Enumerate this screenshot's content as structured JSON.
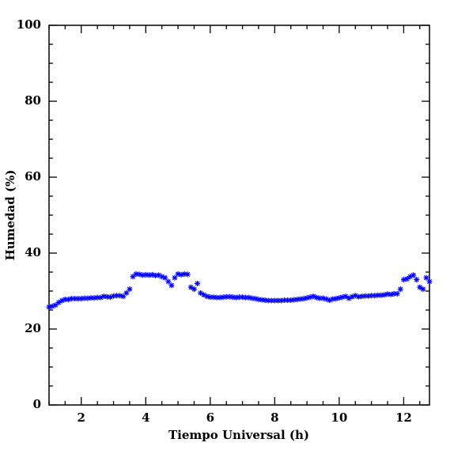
{
  "chart_data": {
    "type": "scatter",
    "xlabel": "Tiempo Universal (h)",
    "ylabel": "Humedad (%)",
    "xlim": [
      1,
      12.8
    ],
    "ylim": [
      0,
      100
    ],
    "xticks": [
      2,
      4,
      6,
      8,
      10,
      12
    ],
    "yticks": [
      0,
      20,
      40,
      60,
      80,
      100
    ],
    "xminorticks": [
      1,
      1.5,
      2.5,
      3,
      3.5,
      4.5,
      5,
      5.5,
      6.5,
      7,
      7.5,
      8.5,
      9,
      9.5,
      10.5,
      11,
      11.5,
      12.5
    ],
    "yminorticks": [
      5,
      10,
      15,
      25,
      30,
      35,
      45,
      50,
      55,
      65,
      70,
      75,
      85,
      90,
      95
    ],
    "color": "#0000ff",
    "x": [
      1.0,
      1.1,
      1.2,
      1.3,
      1.4,
      1.5,
      1.6,
      1.7,
      1.8,
      1.9,
      2.0,
      2.1,
      2.2,
      2.3,
      2.4,
      2.5,
      2.6,
      2.7,
      2.8,
      2.9,
      3.0,
      3.1,
      3.2,
      3.3,
      3.4,
      3.5,
      3.6,
      3.7,
      3.8,
      3.9,
      4.0,
      4.1,
      4.2,
      4.3,
      4.4,
      4.5,
      4.6,
      4.7,
      4.8,
      4.9,
      5.0,
      5.1,
      5.2,
      5.3,
      5.4,
      5.5,
      5.6,
      5.7,
      5.8,
      5.9,
      6.0,
      6.1,
      6.2,
      6.3,
      6.4,
      6.5,
      6.6,
      6.7,
      6.8,
      6.9,
      7.0,
      7.1,
      7.2,
      7.3,
      7.4,
      7.5,
      7.6,
      7.7,
      7.8,
      7.9,
      8.0,
      8.1,
      8.2,
      8.3,
      8.4,
      8.5,
      8.6,
      8.7,
      8.8,
      8.9,
      9.0,
      9.1,
      9.2,
      9.3,
      9.4,
      9.5,
      9.6,
      9.7,
      9.8,
      9.9,
      10.0,
      10.1,
      10.2,
      10.3,
      10.4,
      10.5,
      10.6,
      10.7,
      10.8,
      10.9,
      11.0,
      11.1,
      11.2,
      11.3,
      11.4,
      11.5,
      11.6,
      11.7,
      11.8,
      11.9,
      12.0,
      12.1,
      12.2,
      12.3,
      12.4,
      12.5,
      12.6,
      12.7,
      12.8
    ],
    "values": [
      25.8,
      26,
      26.3,
      27,
      27.5,
      27.8,
      27.8,
      28,
      28,
      28,
      28,
      28.1,
      28.1,
      28.2,
      28.2,
      28.3,
      28.3,
      28.6,
      28.5,
      28.4,
      28.7,
      28.8,
      28.8,
      28.6,
      29.5,
      30.5,
      33.8,
      34.5,
      34.4,
      34.2,
      34.3,
      34.2,
      34.3,
      34.1,
      34.2,
      33.8,
      33.5,
      32.5,
      31.5,
      33.5,
      34.5,
      34.3,
      34.5,
      34.4,
      31,
      30.5,
      32,
      29.5,
      29,
      28.6,
      28.4,
      28.4,
      28.3,
      28.3,
      28.4,
      28.5,
      28.5,
      28.4,
      28.3,
      28.4,
      28.4,
      28.3,
      28.3,
      28.1,
      28,
      27.8,
      27.7,
      27.6,
      27.5,
      27.5,
      27.5,
      27.5,
      27.5,
      27.6,
      27.6,
      27.6,
      27.7,
      27.8,
      27.9,
      28,
      28.2,
      28.4,
      28.6,
      28.3,
      28.1,
      28.1,
      27.9,
      27.6,
      27.9,
      28,
      28.2,
      28.4,
      28.6,
      28.1,
      28.5,
      28.8,
      28.5,
      28.6,
      28.7,
      28.7,
      28.8,
      28.8,
      28.9,
      28.9,
      29,
      29.2,
      29.1,
      29.3,
      29.3,
      30.5,
      33,
      33.2,
      33.8,
      34.2,
      33,
      31,
      30.5,
      33.5,
      32.5
    ]
  }
}
